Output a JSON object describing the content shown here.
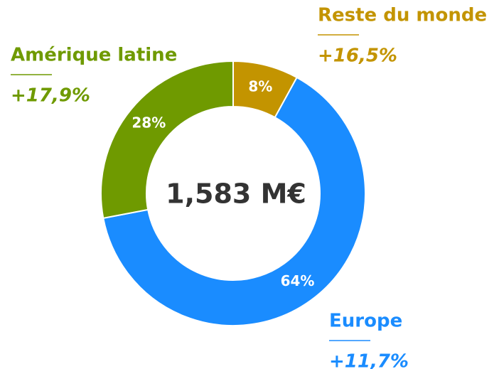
{
  "chart_data": {
    "type": "pie",
    "categories": [
      "Reste du monde",
      "Europe",
      "Amérique latine"
    ],
    "values": [
      8,
      64,
      28
    ],
    "value_labels": [
      "8%",
      "64%",
      "28%"
    ],
    "colors": [
      "#c39400",
      "#1a8cff",
      "#6f9a00"
    ],
    "annotations": [
      "+16,5%",
      "+11,7%",
      "+17,9%"
    ],
    "center_label": "1,583 M€"
  }
}
